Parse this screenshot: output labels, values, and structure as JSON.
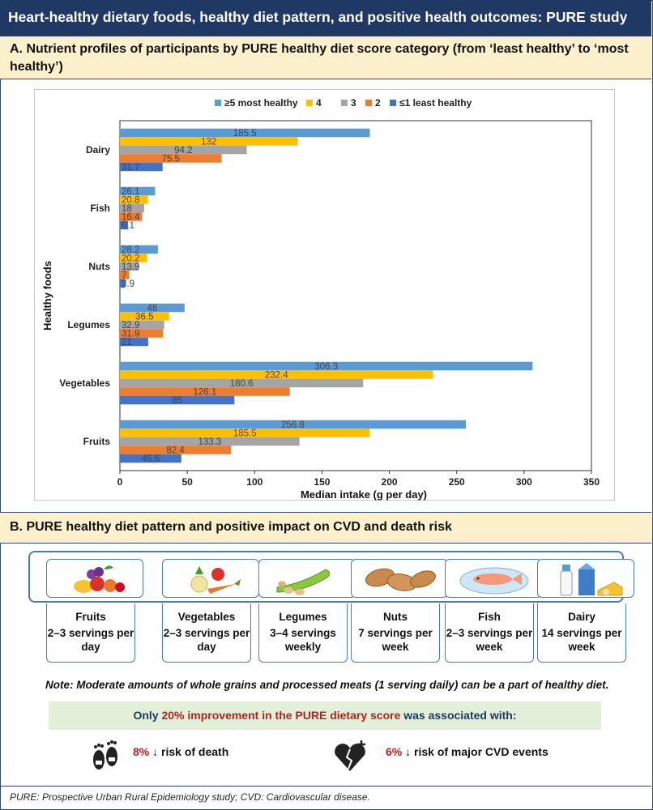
{
  "title": "Heart-healthy dietary foods, healthy diet pattern, and positive health outcomes: PURE study",
  "section_a": {
    "heading": "A.  Nutrient profiles of participants by PURE healthy diet score category (from ‘least healthy’ to ‘most healthy’)"
  },
  "section_b": {
    "heading": "B.  PURE healthy diet pattern and positive impact on CVD and death risk"
  },
  "chart_data": {
    "type": "bar",
    "orientation": "horizontal",
    "xlabel": "Median intake (g per day)",
    "ylabel": "Healthy foods",
    "xlim": [
      0,
      350
    ],
    "xticks": [
      0,
      50,
      100,
      150,
      200,
      250,
      300,
      350
    ],
    "categories": [
      "Dairy",
      "Fish",
      "Nuts",
      "Legumes",
      "Vegetables",
      "Fruits"
    ],
    "series": [
      {
        "name": "≥5 most healthy",
        "color": "#5b9bd5",
        "values": [
          185.5,
          26.1,
          28.2,
          48,
          306.3,
          256.8
        ]
      },
      {
        "name": "4",
        "color": "#ffc000",
        "values": [
          132,
          20.8,
          20.2,
          36.5,
          232.4,
          185.5
        ]
      },
      {
        "name": "3",
        "color": "#a5a5a5",
        "values": [
          94.2,
          18,
          13.9,
          32.9,
          180.6,
          133.3
        ]
      },
      {
        "name": "2",
        "color": "#ed7d31",
        "values": [
          75.5,
          16.4,
          7,
          31.9,
          126.1,
          82.4
        ]
      },
      {
        "name": "≤1 least healthy",
        "color": "#4472c4",
        "values": [
          31.7,
          6.1,
          3.9,
          21,
          85,
          45.6
        ]
      }
    ]
  },
  "foods": [
    {
      "name": "Fruits",
      "servings": "2–3 servings per day",
      "icon": "fruits-icon"
    },
    {
      "name": "Vegetables",
      "servings": "2–3 servings per day",
      "icon": "vegetables-icon"
    },
    {
      "name": "Legumes",
      "servings": "3–4 servings weekly",
      "icon": "legumes-icon"
    },
    {
      "name": "Nuts",
      "servings": "7 servings per week",
      "icon": "nuts-icon"
    },
    {
      "name": "Fish",
      "servings": "2–3 servings per week",
      "icon": "fish-icon"
    },
    {
      "name": "Dairy",
      "servings": "14 servings per week",
      "icon": "dairy-icon"
    }
  ],
  "note": "Note: Moderate amounts of whole grains and processed meats (1 serving daily) can be a part of healthy diet.",
  "banner": {
    "part1": "Only ",
    "part2": "20% improvement in the PURE dietary score",
    "part3": " was associated with:"
  },
  "outcomes": [
    {
      "pct": "8%",
      "text": " ↓ risk of death",
      "icon": "footprints-icon"
    },
    {
      "pct": "6%",
      "text": " ↓ risk of major CVD events",
      "icon": "broken-heart-icon"
    }
  ],
  "footer": "PURE: Prospective Urban Rural Epidemiology study; CVD: Cardiovascular disease."
}
